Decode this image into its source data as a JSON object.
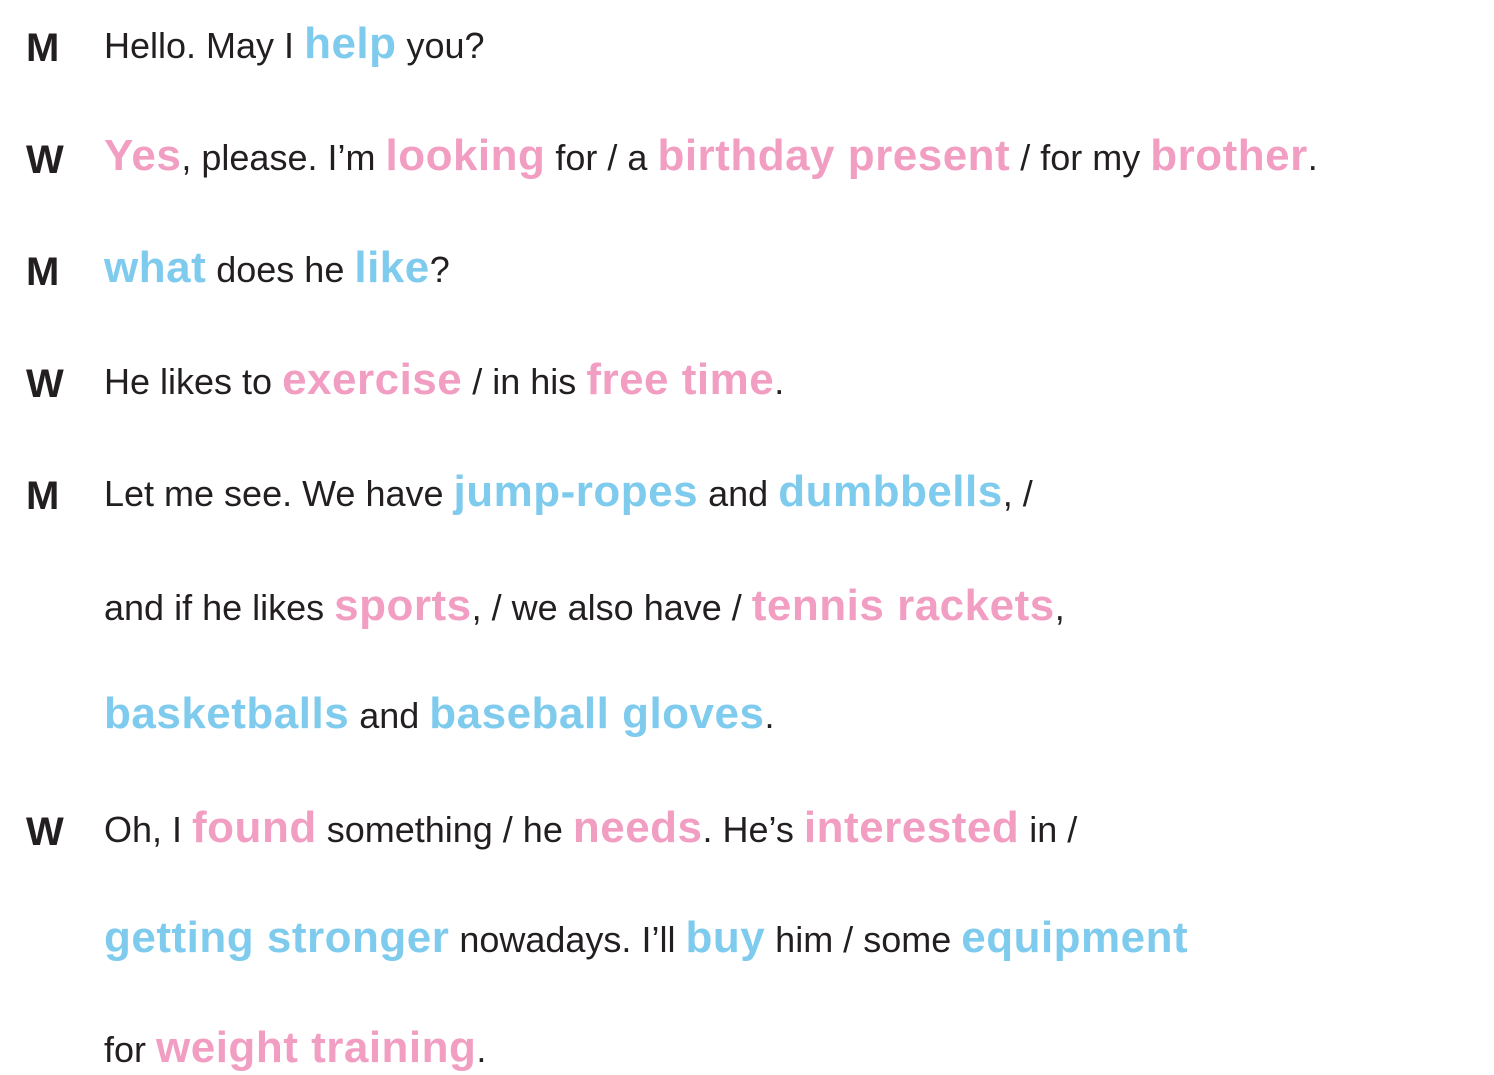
{
  "colors": {
    "text": "#231f20",
    "blue_keyword": "#7ecbee",
    "pink_keyword": "#f19ec2"
  },
  "lines": [
    {
      "speaker": "M",
      "tokens": [
        {
          "t": "Hello. May I ",
          "c": "n"
        },
        {
          "t": "help",
          "c": "blue"
        },
        {
          "t": " you?",
          "c": "n"
        }
      ]
    },
    {
      "speaker": "W",
      "tokens": [
        {
          "t": "Yes",
          "c": "pink"
        },
        {
          "t": ", please. I’m ",
          "c": "n"
        },
        {
          "t": "looking",
          "c": "pink"
        },
        {
          "t": " for / a ",
          "c": "n"
        },
        {
          "t": "birthday present",
          "c": "pink"
        },
        {
          "t": " / for my ",
          "c": "n"
        },
        {
          "t": "brother",
          "c": "pink"
        },
        {
          "t": ".",
          "c": "n"
        }
      ]
    },
    {
      "speaker": "M",
      "tokens": [
        {
          "t": "what",
          "c": "blue"
        },
        {
          "t": " does he ",
          "c": "n"
        },
        {
          "t": "like",
          "c": "blue"
        },
        {
          "t": "?",
          "c": "n"
        }
      ]
    },
    {
      "speaker": "W",
      "tokens": [
        {
          "t": "He likes to ",
          "c": "n"
        },
        {
          "t": "exercise",
          "c": "pink"
        },
        {
          "t": " / in his ",
          "c": "n"
        },
        {
          "t": "free time",
          "c": "pink"
        },
        {
          "t": ".",
          "c": "n"
        }
      ]
    },
    {
      "speaker": "M",
      "tokens": [
        {
          "t": "Let me see. We have ",
          "c": "n"
        },
        {
          "t": "jump-ropes",
          "c": "blue"
        },
        {
          "t": " and ",
          "c": "n"
        },
        {
          "t": "dumbbells",
          "c": "blue"
        },
        {
          "t": ", /",
          "c": "n"
        }
      ]
    },
    {
      "speaker": "",
      "tokens": [
        {
          "t": "and if he likes ",
          "c": "n"
        },
        {
          "t": "sports",
          "c": "pink"
        },
        {
          "t": ", / we also have / ",
          "c": "n"
        },
        {
          "t": "tennis rackets",
          "c": "pink"
        },
        {
          "t": ",",
          "c": "n"
        }
      ]
    },
    {
      "speaker": "",
      "tokens": [
        {
          "t": "basketballs",
          "c": "blue"
        },
        {
          "t": " and ",
          "c": "n"
        },
        {
          "t": "baseball gloves",
          "c": "blue"
        },
        {
          "t": ".",
          "c": "n"
        }
      ]
    },
    {
      "speaker": "W",
      "tokens": [
        {
          "t": "Oh, I ",
          "c": "n"
        },
        {
          "t": "found",
          "c": "pink"
        },
        {
          "t": " something / he ",
          "c": "n"
        },
        {
          "t": "needs",
          "c": "pink"
        },
        {
          "t": ". He’s ",
          "c": "n"
        },
        {
          "t": "interested",
          "c": "pink"
        },
        {
          "t": " in /",
          "c": "n"
        }
      ]
    },
    {
      "speaker": "",
      "tokens": [
        {
          "t": "getting stronger",
          "c": "blue"
        },
        {
          "t": " nowadays. I’ll ",
          "c": "n"
        },
        {
          "t": "buy",
          "c": "blue"
        },
        {
          "t": " him / some ",
          "c": "n"
        },
        {
          "t": "equipment",
          "c": "blue"
        }
      ]
    },
    {
      "speaker": "",
      "tokens": [
        {
          "t": "for ",
          "c": "n"
        },
        {
          "t": "weight training",
          "c": "pink"
        },
        {
          "t": ".",
          "c": "n"
        }
      ]
    }
  ]
}
